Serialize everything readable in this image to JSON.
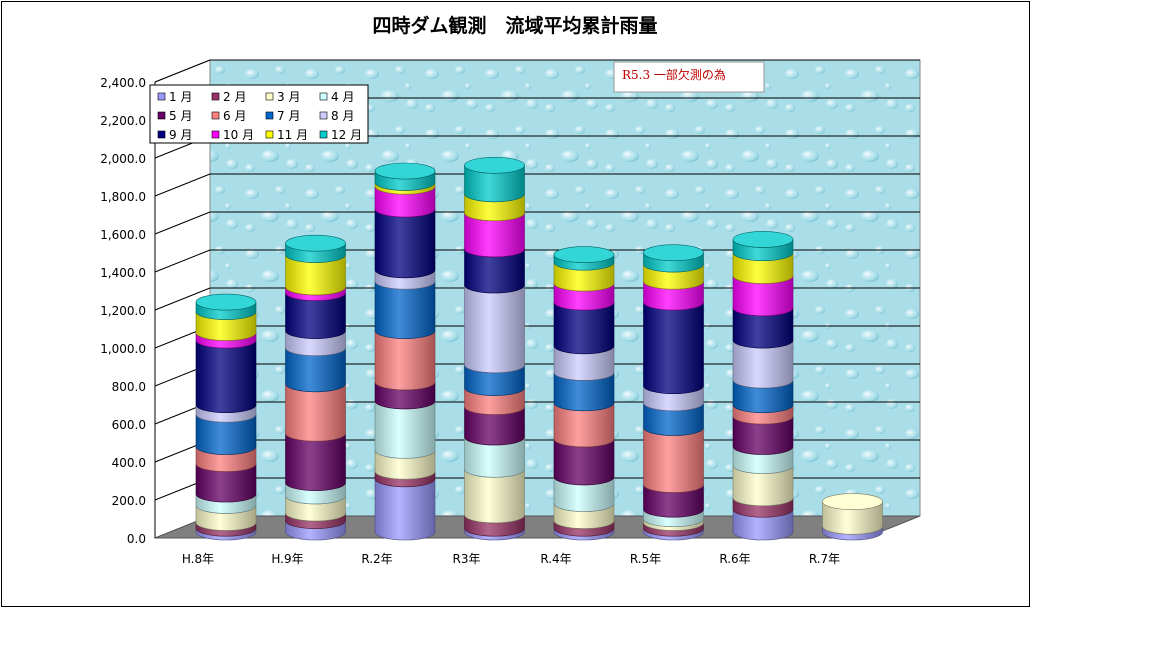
{
  "chart_data": {
    "type": "bar",
    "stacked": true,
    "style": "3d-cylinder",
    "title": "四時ダム観測　流域平均累計雨量",
    "categories": [
      "H.8年",
      "H.9年",
      "R.2年",
      "R3年",
      "R.4年",
      "R.5年",
      "R.6年",
      "R.7年"
    ],
    "ylim": [
      0,
      2400
    ],
    "yticks": [
      "0.0",
      "200.0",
      "400.0",
      "600.0",
      "800.0",
      "1,000.0",
      "1,200.0",
      "1,400.0",
      "1,600.0",
      "1,800.0",
      "2,000.0",
      "2,200.0",
      "2,400.0"
    ],
    "grid": true,
    "legend": "top-left",
    "annotation": "R5.3 一部欠測の為",
    "series": [
      {
        "name": "1 月",
        "color": "#9999ff",
        "values": [
          20,
          60,
          280,
          20,
          20,
          20,
          120,
          30
        ]
      },
      {
        "name": "2 月",
        "color": "#993366",
        "values": [
          30,
          40,
          40,
          70,
          40,
          30,
          60,
          0
        ]
      },
      {
        "name": "3 月",
        "color": "#ffffcc",
        "values": [
          90,
          90,
          110,
          240,
          90,
          20,
          170,
          130
        ]
      },
      {
        "name": "4 月",
        "color": "#ccffff",
        "values": [
          60,
          70,
          260,
          170,
          140,
          50,
          100,
          0
        ]
      },
      {
        "name": "5 月",
        "color": "#660066",
        "values": [
          160,
          260,
          100,
          160,
          200,
          130,
          160,
          0
        ]
      },
      {
        "name": "6 月",
        "color": "#ff8080",
        "values": [
          90,
          260,
          270,
          100,
          190,
          300,
          60,
          0
        ]
      },
      {
        "name": "7 月",
        "color": "#0066cc",
        "values": [
          170,
          190,
          260,
          120,
          160,
          130,
          130,
          0
        ]
      },
      {
        "name": "8 月",
        "color": "#ccccff",
        "values": [
          50,
          90,
          60,
          420,
          140,
          90,
          210,
          0
        ]
      },
      {
        "name": "9 月",
        "color": "#000080",
        "values": [
          340,
          200,
          320,
          190,
          230,
          440,
          170,
          0
        ]
      },
      {
        "name": "10 月",
        "color": "#ff00ff",
        "values": [
          40,
          30,
          120,
          190,
          100,
          110,
          170,
          0
        ]
      },
      {
        "name": "11 月",
        "color": "#ffff00",
        "values": [
          110,
          170,
          20,
          100,
          110,
          90,
          120,
          0
        ]
      },
      {
        "name": "12 月",
        "color": "#00cccc",
        "values": [
          50,
          60,
          60,
          150,
          40,
          60,
          70,
          0
        ]
      }
    ]
  }
}
